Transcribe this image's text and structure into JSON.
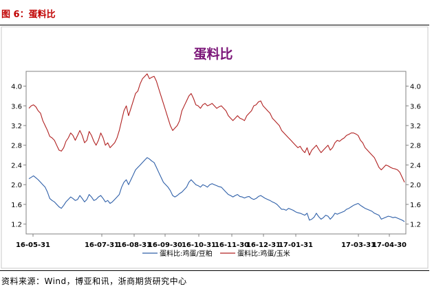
{
  "figure_label": "图 6：蛋料比",
  "source_note": "资料来源：Wind，博亚和讯，浙商期货研究中心",
  "chart_data": {
    "type": "line",
    "title": "蛋料比",
    "title_color": "#7b1578",
    "x_tick_labels": [
      "16-05-31",
      "16-07-31",
      "16-08-31",
      "16-09-30",
      "16-10-31",
      "16-11-30",
      "16-12-31",
      "17-01-31",
      "17-03-31",
      "17-04-30"
    ],
    "ylim": [
      1.0,
      4.3
    ],
    "y_ticks": [
      "1.2",
      "1.6",
      "2.0",
      "2.4",
      "2.8",
      "3.2",
      "3.6",
      "4.0"
    ],
    "legend_position": "bottom",
    "series": [
      {
        "name": "蛋料比:鸡蛋/豆粕",
        "color": "#2e5fa8",
        "values": [
          2.12,
          2.15,
          2.18,
          2.14,
          2.1,
          2.05,
          2.0,
          1.95,
          1.85,
          1.72,
          1.68,
          1.65,
          1.6,
          1.55,
          1.52,
          1.58,
          1.65,
          1.7,
          1.75,
          1.72,
          1.68,
          1.7,
          1.78,
          1.72,
          1.65,
          1.7,
          1.8,
          1.75,
          1.68,
          1.7,
          1.75,
          1.78,
          1.72,
          1.65,
          1.68,
          1.62,
          1.65,
          1.7,
          1.75,
          1.8,
          1.95,
          2.05,
          2.1,
          2.0,
          2.1,
          2.2,
          2.3,
          2.35,
          2.4,
          2.45,
          2.5,
          2.55,
          2.52,
          2.48,
          2.45,
          2.35,
          2.25,
          2.15,
          2.05,
          2.0,
          1.95,
          1.88,
          1.78,
          1.75,
          1.78,
          1.82,
          1.85,
          1.9,
          1.95,
          2.05,
          2.1,
          2.05,
          2.0,
          1.98,
          1.95,
          2.0,
          1.98,
          1.95,
          2.0,
          2.02,
          2.0,
          1.98,
          1.96,
          1.95,
          1.9,
          1.85,
          1.8,
          1.78,
          1.75,
          1.78,
          1.8,
          1.76,
          1.75,
          1.73,
          1.75,
          1.76,
          1.72,
          1.7,
          1.72,
          1.76,
          1.78,
          1.75,
          1.72,
          1.7,
          1.68,
          1.65,
          1.63,
          1.6,
          1.55,
          1.5,
          1.5,
          1.48,
          1.52,
          1.5,
          1.48,
          1.45,
          1.43,
          1.42,
          1.4,
          1.38,
          1.42,
          1.28,
          1.3,
          1.34,
          1.42,
          1.35,
          1.3,
          1.33,
          1.38,
          1.36,
          1.3,
          1.35,
          1.42,
          1.4,
          1.42,
          1.44,
          1.46,
          1.5,
          1.52,
          1.55,
          1.58,
          1.6,
          1.62,
          1.58,
          1.55,
          1.52,
          1.5,
          1.48,
          1.46,
          1.42,
          1.4,
          1.38,
          1.3,
          1.32,
          1.34,
          1.36,
          1.35,
          1.33,
          1.34,
          1.32,
          1.3,
          1.28,
          1.25
        ]
      },
      {
        "name": "蛋料比:鸡蛋/玉米",
        "color": "#b02020",
        "values": [
          3.55,
          3.6,
          3.62,
          3.58,
          3.5,
          3.45,
          3.3,
          3.2,
          3.1,
          2.98,
          2.95,
          2.9,
          2.8,
          2.7,
          2.68,
          2.75,
          2.88,
          2.95,
          3.05,
          3.0,
          2.9,
          3.0,
          3.1,
          3.0,
          2.85,
          2.9,
          3.08,
          3.0,
          2.88,
          2.8,
          2.9,
          3.05,
          2.95,
          2.8,
          2.85,
          2.75,
          2.8,
          2.85,
          2.95,
          3.1,
          3.3,
          3.5,
          3.6,
          3.4,
          3.55,
          3.7,
          3.85,
          3.9,
          4.05,
          4.15,
          4.2,
          4.25,
          4.15,
          4.18,
          4.2,
          4.1,
          3.95,
          3.8,
          3.65,
          3.5,
          3.35,
          3.2,
          3.1,
          3.15,
          3.2,
          3.3,
          3.5,
          3.6,
          3.7,
          3.8,
          3.85,
          3.75,
          3.62,
          3.6,
          3.55,
          3.62,
          3.65,
          3.6,
          3.62,
          3.65,
          3.6,
          3.55,
          3.58,
          3.6,
          3.55,
          3.5,
          3.4,
          3.35,
          3.3,
          3.35,
          3.4,
          3.35,
          3.33,
          3.3,
          3.4,
          3.45,
          3.5,
          3.6,
          3.62,
          3.68,
          3.7,
          3.6,
          3.55,
          3.5,
          3.45,
          3.35,
          3.3,
          3.25,
          3.2,
          3.1,
          3.05,
          3.0,
          2.95,
          2.9,
          2.85,
          2.8,
          2.75,
          2.78,
          2.7,
          2.65,
          2.75,
          2.6,
          2.7,
          2.75,
          2.8,
          2.72,
          2.65,
          2.7,
          2.75,
          2.8,
          2.7,
          2.75,
          2.85,
          2.9,
          2.88,
          2.92,
          2.95,
          3.0,
          3.02,
          3.05,
          3.05,
          3.03,
          3.0,
          2.9,
          2.85,
          2.75,
          2.7,
          2.65,
          2.6,
          2.55,
          2.45,
          2.35,
          2.3,
          2.35,
          2.4,
          2.38,
          2.35,
          2.33,
          2.32,
          2.3,
          2.25,
          2.15,
          2.05
        ]
      }
    ]
  }
}
